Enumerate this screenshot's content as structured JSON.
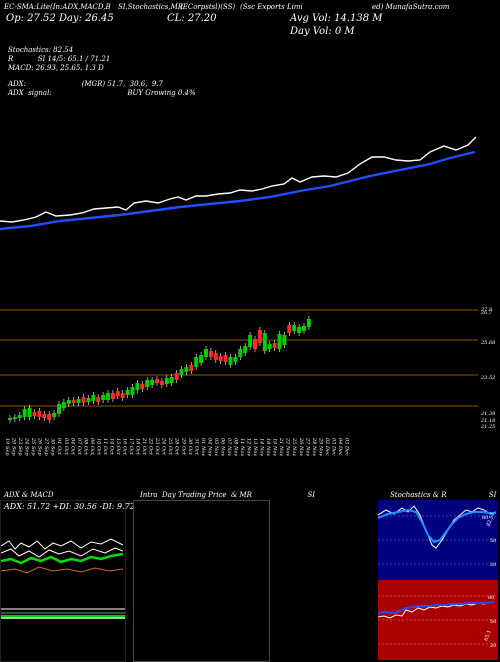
{
  "header": {
    "line1_left": "EC-SMA:Lite(In:ADX,MACD,B",
    "line1_mid": "SI,Stochastics,MR",
    "line1_ticker": "(ECorpstsl)(SS)",
    "line1_company": "(Ssc Exports Limi",
    "line1_right": "ed) MunafaSutra.com",
    "open_label": "Op: 27.52  Day: 26.45",
    "close_label": "CL: 27.20",
    "avg_vol": "Avg Vol: 14.138  M",
    "day_vol": "Day Vol: 0  M"
  },
  "indicators": {
    "stochastics": "Stochastics: 82.54",
    "rsi_line": "R           SI 14/5: 65.1 / 71.21",
    "macd": "MACD: 26.93,  25.65,  1.3 D",
    "adx": "ADX:                         (MGR) 51.7,  30.6,  9.7",
    "adx_signal": "ADX  signal:                                  BUY Growing 0.4%"
  },
  "price_axis": [
    "26.7",
    "25.68",
    "23.52",
    "21.39",
    "21.18",
    "21.25",
    "27.8"
  ],
  "date_labels": [
    "19 Sep",
    "20 Sep",
    "23 Sep",
    "24 Sep",
    "25 Sep",
    "26 Sep",
    "27 Sep",
    "30 Sep",
    "01 Oct",
    "03 Oct",
    "04 Oct",
    "07 Oct",
    "08 Oct",
    "09 Oct",
    "10 Oct",
    "11 Oct",
    "14 Oct",
    "15 Oct",
    "16 Oct",
    "17 Oct",
    "18 Oct",
    "21 Oct",
    "22 Oct",
    "23 Oct",
    "24 Oct",
    "25 Oct",
    "28 Oct",
    "29 Oct",
    "30 Oct",
    "31 Oct",
    "01 Nov",
    "04 Nov",
    "05 Nov",
    "06 Nov",
    "07 Nov",
    "08 Nov",
    "11 Nov",
    "12 Nov",
    "13 Nov",
    "14 Nov",
    "18 Nov",
    "19 Nov",
    "21 Nov",
    "22 Nov",
    "25 Nov",
    "26 Nov",
    "27 Nov",
    "28 Nov",
    "29 Nov",
    "02 Dec",
    "03 Dec",
    "04 Dec",
    "05 Dec"
  ],
  "panels": {
    "adx_title": "ADX  & MACD",
    "adx_values": "ADX: 51.72  +DI: 30.56  -DI: 9.72",
    "intraday_title": "Intra  Day Trading Price  & MR                         SI",
    "stoch_title": "Stochastics & R                   SI",
    "stoch_ticks": [
      "80",
      "50",
      "20"
    ],
    "rsi_ticks": [
      "80",
      "50",
      "20"
    ],
    "stoch_value": "82.54",
    "rsi_value": "65.1"
  },
  "colors": {
    "sma_white": "#ffffff",
    "sma_blue": "#1f4fff",
    "candle_up": "#00cc00",
    "candle_down": "#ff2a2a",
    "level_line": "#8a5a00",
    "stoch_bg": "#000080",
    "rsi_bg": "#aa0000"
  }
}
